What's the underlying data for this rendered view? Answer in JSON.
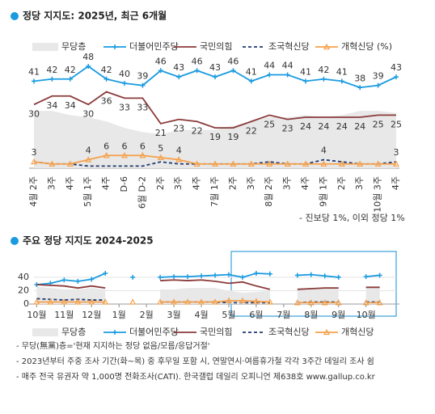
{
  "chart_data": [
    {
      "type": "line",
      "title": "정당 지지도: 2025년, 최근 6개월",
      "annotation": "- 진보당 1%, 이외 정당 1%",
      "categories": [
        "4월 2주",
        "3주",
        "4주",
        "5월 1주",
        "4주",
        "D-6",
        "6월 D-2",
        "2주",
        "3주",
        "4주",
        "7월 1주",
        "2주",
        "3주",
        "8월 2주",
        "3주",
        "4주",
        "9월 1주",
        "2주",
        "3주",
        "10월 3주",
        "4주"
      ],
      "ylim": [
        0,
        56
      ],
      "series": [
        {
          "name": "무당층",
          "color": "#e8e8e8",
          "style": "area",
          "values": [
            27,
            27,
            25,
            24,
            22,
            19,
            17,
            16,
            18,
            18,
            18,
            20,
            22,
            24,
            24,
            25,
            24,
            25,
            27,
            27,
            26
          ]
        },
        {
          "name": "더불어민주당",
          "color": "#1a9be0",
          "marker": "plus",
          "values": [
            41,
            42,
            42,
            48,
            42,
            40,
            39,
            46,
            43,
            46,
            43,
            46,
            41,
            44,
            44,
            41,
            42,
            41,
            38,
            39,
            43
          ]
        },
        {
          "name": "국민의힘",
          "color": "#8b3a3a",
          "label_side": "below",
          "values": [
            30,
            34,
            34,
            30,
            36,
            33,
            33,
            21,
            23,
            22,
            19,
            19,
            22,
            25,
            23,
            24,
            24,
            24,
            24,
            25,
            25
          ]
        },
        {
          "name": "조국혁신당",
          "color": "#1f3a6e",
          "dash": true,
          "values": [
            3,
            2,
            2,
            1,
            1,
            1,
            1,
            3,
            2,
            2,
            2,
            2,
            2,
            3,
            2,
            2,
            4,
            3,
            2,
            2,
            3
          ],
          "value_labels": [
            "3",
            null,
            null,
            null,
            null,
            null,
            null,
            null,
            null,
            null,
            null,
            null,
            null,
            null,
            null,
            null,
            "4",
            null,
            null,
            null,
            "3"
          ]
        },
        {
          "name": "개혁신당 (%)",
          "color": "#f5a04a",
          "marker": "triangle",
          "values": [
            3,
            2,
            2,
            4,
            6,
            6,
            6,
            5,
            4,
            2,
            2,
            2,
            2,
            2,
            2,
            2,
            2,
            2,
            2,
            2,
            2
          ],
          "value_labels": [
            null,
            null,
            null,
            "4",
            "6",
            "6",
            "6",
            "5",
            "4",
            null,
            null,
            null,
            null,
            null,
            null,
            null,
            null,
            null,
            null,
            null,
            null
          ]
        }
      ]
    },
    {
      "type": "line",
      "title": "주요 정당 지지도 2024-2025",
      "x": [
        0,
        0.5,
        1,
        1.5,
        2,
        2.5,
        3,
        3.5,
        4,
        4.5,
        5,
        5.5,
        6,
        6.5,
        7,
        7.5,
        8,
        8.5,
        9,
        9.5,
        10,
        10.5,
        11,
        11.5,
        12,
        12.5
      ],
      "xlim": [
        -0.1,
        13.1
      ],
      "xticks": [
        {
          "value": 0,
          "label": "10월"
        },
        {
          "value": 1,
          "label": "11월"
        },
        {
          "value": 2,
          "label": "12월"
        },
        {
          "value": 3,
          "label": "1월"
        },
        {
          "value": 4,
          "label": "2월"
        },
        {
          "value": 5,
          "label": "3월"
        },
        {
          "value": 6,
          "label": "4월"
        },
        {
          "value": 7,
          "label": "5월"
        },
        {
          "value": 8,
          "label": "6월"
        },
        {
          "value": 9,
          "label": "7월"
        },
        {
          "value": 10,
          "label": "8월"
        },
        {
          "value": 11,
          "label": "9월"
        },
        {
          "value": 12,
          "label": "10월"
        }
      ],
      "ylim": [
        0,
        75
      ],
      "yticks": [
        0,
        20,
        40
      ],
      "grid": true,
      "series": [
        {
          "name": "무당층",
          "color": "#e8e8e8",
          "style": "area",
          "values": [
            26,
            24,
            22,
            22,
            24,
            22,
            null,
            20,
            null,
            22,
            22,
            24,
            24,
            24,
            20,
            17,
            18,
            20,
            null,
            22,
            24,
            24,
            25,
            null,
            26,
            26
          ]
        },
        {
          "name": "더불어민주당",
          "color": "#1a9be0",
          "marker": "plus",
          "values": [
            29,
            31,
            36,
            34,
            37,
            46,
            null,
            40,
            null,
            40,
            41,
            41,
            42,
            43,
            44,
            40,
            46,
            45,
            null,
            43,
            44,
            42,
            40,
            null,
            41,
            43
          ]
        },
        {
          "name": "국민의힘",
          "color": "#8b3a3a",
          "values": [
            29,
            28,
            27,
            24,
            27,
            24,
            null,
            37,
            null,
            35,
            36,
            35,
            36,
            34,
            31,
            33,
            27,
            22,
            null,
            22,
            23,
            24,
            24,
            null,
            25,
            25
          ]
        },
        {
          "name": "조국혁신당",
          "color": "#1f3a6e",
          "dash": true,
          "values": [
            8,
            7,
            6,
            7,
            6,
            6,
            null,
            4,
            null,
            3,
            3,
            3,
            3,
            3,
            2,
            2,
            2,
            2,
            null,
            2,
            3,
            3,
            3,
            null,
            3,
            3
          ]
        },
        {
          "name": "개혁신당",
          "color": "#f5a04a",
          "marker": "triangle",
          "values": [
            3,
            3,
            3,
            3,
            3,
            3,
            null,
            3,
            null,
            3,
            3,
            3,
            3,
            3,
            5,
            5,
            4,
            3,
            null,
            2,
            2,
            2,
            2,
            null,
            2,
            2
          ]
        }
      ]
    }
  ],
  "notes": [
    "- 무당(無黨)층='현재 지지하는 정당 없음/모름/응답거절'",
    "- 2023년부터 주중 조사 기간(화~목) 중 후무일 포함 시, 연말연시·여름휴가철 각각 3주간 데일리 조사 쉼",
    "- 매주 전국 유권자 약 1,000명 전화조사(CATI). 한국갤럽 데일리 오피니언 제638호 www.gallup.co.kr"
  ]
}
